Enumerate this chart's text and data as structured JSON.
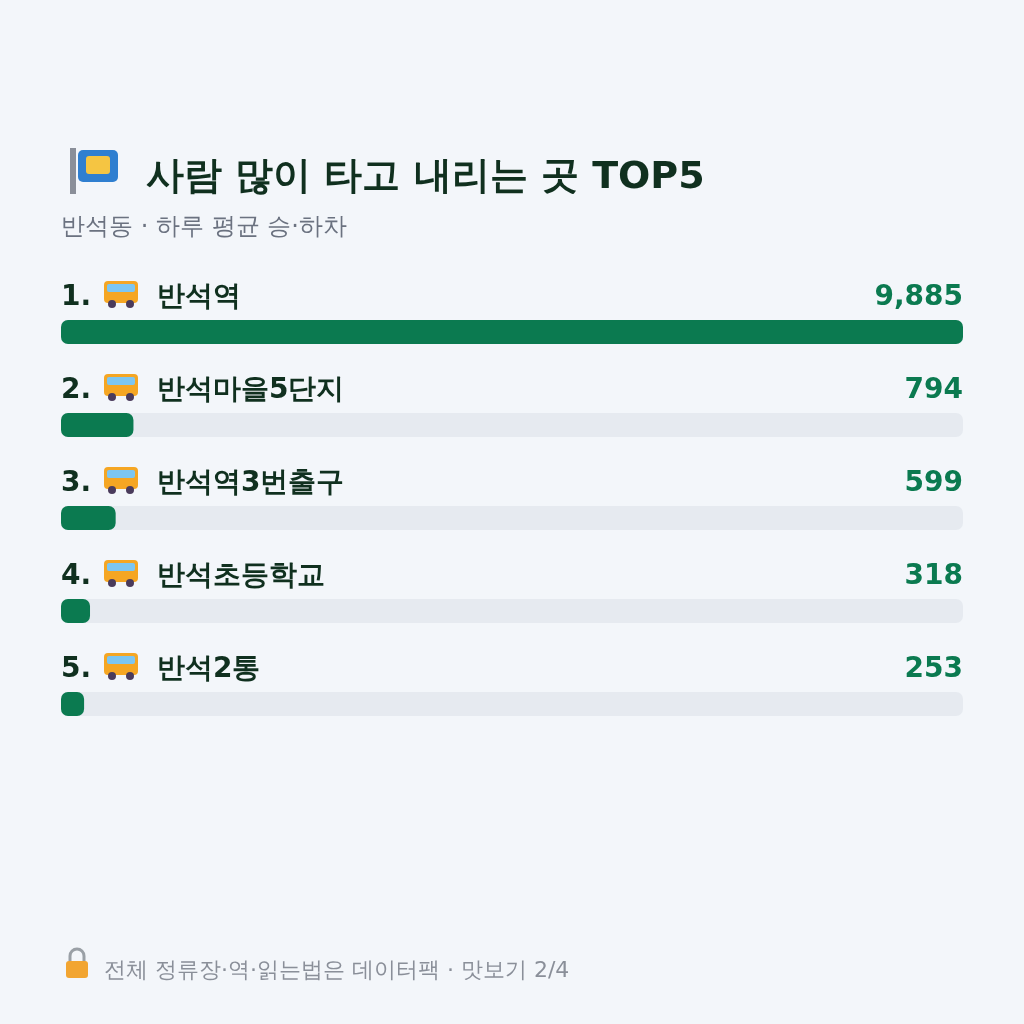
{
  "chart_data": {
    "type": "bar",
    "orientation": "horizontal",
    "title": "사람 많이 타고 내리는 곳 TOP5",
    "subtitle": "반석동 · 하루 평균 승·하차",
    "categories": [
      "1. 반석역",
      "2. 반석마을5단지",
      "3. 반석역3번출구",
      "4. 반석초등학교",
      "5. 반석2통"
    ],
    "values": [
      9885,
      794,
      599,
      318,
      253
    ],
    "value_labels": [
      "9,885",
      "794",
      "599",
      "318",
      "253"
    ],
    "color": "#0b7a50",
    "annotations": [
      "전체 정류장·역·읽는법은 데이터팩 · 맛보기 2/4"
    ]
  }
}
